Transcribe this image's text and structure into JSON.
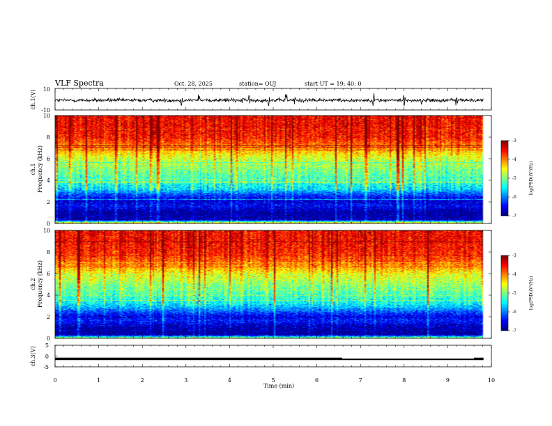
{
  "header": {
    "title": "VLF Spectra",
    "date": "Oct. 28, 2025",
    "station": "station= OUJ",
    "start": "start  UT  =   19: 40: 0"
  },
  "chart_data": {
    "type": "heatmap",
    "x_axis": {
      "label": "Time  (min)",
      "range": [
        0,
        10
      ],
      "ticks": [
        "0",
        "1",
        "2",
        "3",
        "4",
        "5",
        "6",
        "7",
        "8",
        "9",
        "10"
      ]
    },
    "panels": [
      {
        "id": "ch1-waveform",
        "type": "line",
        "ylabel": "ch.1(V)",
        "ylim": [
          -10,
          10
        ],
        "yticks": [
          "10",
          "-10"
        ],
        "baseline": 0
      },
      {
        "id": "ch1-spectrogram",
        "type": "heatmap",
        "ylabel_channel": "ch.1",
        "ylabel": "Frequency  (kHz)",
        "ylim": [
          0,
          10
        ],
        "yticks": [
          "0",
          "2",
          "4",
          "6",
          "8",
          "10"
        ],
        "colorbar": {
          "label": "log(PSD)(V²/Hz)",
          "range": [
            -7,
            -3
          ],
          "ticks": [
            "-3",
            "-4",
            "-5",
            "-6",
            "-7"
          ]
        },
        "mean_log_psd_profile": [
          {
            "f_khz": 0.0,
            "log_psd": -4.3
          },
          {
            "f_khz": 0.3,
            "log_psd": -6.8
          },
          {
            "f_khz": 1.0,
            "log_psd": -6.9
          },
          {
            "f_khz": 1.6,
            "log_psd": -6.5
          },
          {
            "f_khz": 2.0,
            "log_psd": -6.7
          },
          {
            "f_khz": 2.6,
            "log_psd": -6.3
          },
          {
            "f_khz": 3.2,
            "log_psd": -5.6
          },
          {
            "f_khz": 4.0,
            "log_psd": -5.3
          },
          {
            "f_khz": 5.0,
            "log_psd": -5.0
          },
          {
            "f_khz": 6.0,
            "log_psd": -4.7
          },
          {
            "f_khz": 7.0,
            "log_psd": -4.1
          },
          {
            "f_khz": 8.0,
            "log_psd": -3.6
          },
          {
            "f_khz": 9.0,
            "log_psd": -3.5
          },
          {
            "f_khz": 10.0,
            "log_psd": -3.5
          }
        ]
      },
      {
        "id": "ch2-spectrogram",
        "type": "heatmap",
        "ylabel_channel": "ch.2",
        "ylabel": "Frequency  (kHz)",
        "ylim": [
          0,
          10
        ],
        "yticks": [
          "0",
          "2",
          "4",
          "6",
          "8",
          "10"
        ],
        "colorbar": {
          "label": "log(PSD)(V²/Hz)",
          "range": [
            -7,
            -3
          ],
          "ticks": [
            "-3",
            "-4",
            "-5",
            "-6",
            "-7"
          ]
        },
        "mean_log_psd_profile": [
          {
            "f_khz": 0.0,
            "log_psd": -4.8
          },
          {
            "f_khz": 0.3,
            "log_psd": -6.9
          },
          {
            "f_khz": 1.0,
            "log_psd": -6.8
          },
          {
            "f_khz": 1.6,
            "log_psd": -6.4
          },
          {
            "f_khz": 2.0,
            "log_psd": -6.6
          },
          {
            "f_khz": 2.6,
            "log_psd": -6.0
          },
          {
            "f_khz": 3.2,
            "log_psd": -5.5
          },
          {
            "f_khz": 4.0,
            "log_psd": -5.2
          },
          {
            "f_khz": 5.0,
            "log_psd": -4.9
          },
          {
            "f_khz": 6.0,
            "log_psd": -4.5
          },
          {
            "f_khz": 7.0,
            "log_psd": -3.9
          },
          {
            "f_khz": 8.0,
            "log_psd": -3.6
          },
          {
            "f_khz": 9.0,
            "log_psd": -3.5
          },
          {
            "f_khz": 10.0,
            "log_psd": -3.5
          }
        ]
      },
      {
        "id": "ch3-signal",
        "type": "line",
        "ylabel": "ch.3(V)",
        "ylim": [
          -5,
          5
        ],
        "yticks": [
          "5",
          "0",
          "-5"
        ],
        "segments": [
          {
            "t0": 0.0,
            "t1": 6.58,
            "value": -1.3
          },
          {
            "t0": 6.58,
            "t1": 9.6,
            "value": -1.55
          },
          {
            "t0": 9.6,
            "t1": 9.82,
            "value": -1.3
          }
        ]
      }
    ]
  }
}
